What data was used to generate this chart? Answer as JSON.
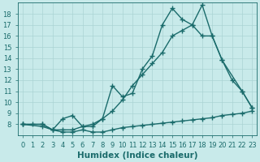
{
  "xlabel": "Humidex (Indice chaleur)",
  "bg_color": "#c8eaea",
  "line_color": "#1a6b6b",
  "xlim": [
    -0.5,
    23.5
  ],
  "ylim": [
    7,
    19
  ],
  "xticks": [
    0,
    1,
    2,
    3,
    4,
    5,
    6,
    7,
    8,
    9,
    10,
    11,
    12,
    13,
    14,
    15,
    16,
    17,
    18,
    19,
    20,
    21,
    22,
    23
  ],
  "yticks": [
    8,
    9,
    10,
    11,
    12,
    13,
    14,
    15,
    16,
    17,
    18
  ],
  "line1_x": [
    0,
    1,
    2,
    3,
    4,
    5,
    6,
    7,
    8,
    9,
    10,
    11,
    12,
    13,
    14,
    15,
    16,
    17,
    18,
    19,
    20,
    21,
    22,
    23
  ],
  "line1_y": [
    8.0,
    8.0,
    8.0,
    7.5,
    7.3,
    7.3,
    7.5,
    7.3,
    7.3,
    7.5,
    7.7,
    7.8,
    7.9,
    8.0,
    8.1,
    8.2,
    8.3,
    8.4,
    8.5,
    8.6,
    8.8,
    8.9,
    9.0,
    9.2
  ],
  "line2_x": [
    0,
    2,
    3,
    4,
    5,
    6,
    7,
    8,
    9,
    10,
    11,
    12,
    13,
    14,
    15,
    16,
    17,
    18,
    19,
    20,
    22,
    23
  ],
  "line2_y": [
    8.0,
    8.0,
    7.5,
    7.5,
    7.5,
    7.8,
    8.0,
    8.5,
    9.2,
    10.2,
    11.5,
    12.5,
    13.5,
    14.5,
    16.0,
    16.5,
    17.0,
    18.8,
    16.0,
    13.8,
    11.0,
    9.5
  ],
  "line3_x": [
    0,
    2,
    3,
    4,
    5,
    6,
    7,
    8,
    9,
    10,
    11,
    12,
    13,
    14,
    15,
    16,
    17,
    18,
    19,
    20,
    21,
    22,
    23
  ],
  "line3_y": [
    8.0,
    7.8,
    7.5,
    8.5,
    8.8,
    7.8,
    7.8,
    8.5,
    11.5,
    10.5,
    10.8,
    13.0,
    14.2,
    17.0,
    18.5,
    17.5,
    17.0,
    16.0,
    16.0,
    13.8,
    12.0,
    11.0,
    9.5
  ],
  "marker": "+",
  "markersize": 4,
  "linewidth": 1.0,
  "grid_color": "#aad4d4",
  "font_color": "#1a6b6b",
  "xlabel_fontsize": 7.5,
  "tick_fontsize": 6.0
}
